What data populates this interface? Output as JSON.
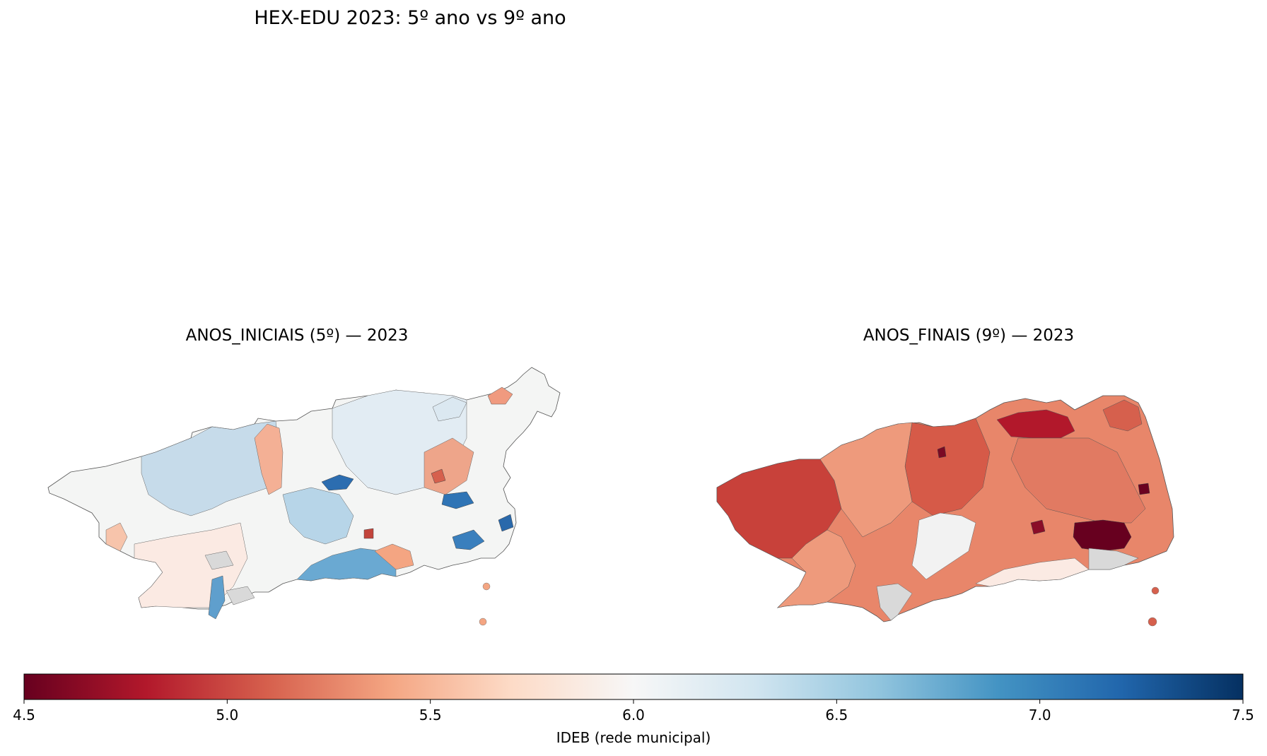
{
  "figure": {
    "title": "HEX-EDU 2023: 5º ano vs 9º ano"
  },
  "panels": [
    {
      "title": "ANOS_INICIAIS (5º) — 2023"
    },
    {
      "title": "ANOS_FINAIS (9º) — 2023"
    }
  ],
  "colorbar": {
    "label": "IDEB (rede municipal)",
    "min": 4.5,
    "max": 7.5,
    "ticks": [
      "4.5",
      "5.0",
      "5.5",
      "6.0",
      "6.5",
      "7.0",
      "7.5"
    ],
    "colormap": "RdBu",
    "stops": [
      "#67001f",
      "#b2182b",
      "#d6604d",
      "#f4a582",
      "#fddbc7",
      "#f7f7f7",
      "#d1e5f0",
      "#92c5de",
      "#4393c3",
      "#2166ac",
      "#053061"
    ]
  }
}
